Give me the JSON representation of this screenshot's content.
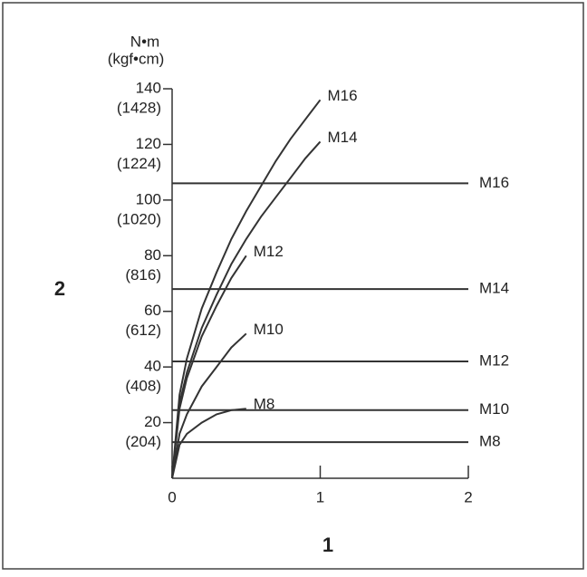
{
  "chart_data": {
    "type": "line",
    "y_unit": "N•m",
    "y2_unit": "(kgf•cm)",
    "x_label": "1",
    "y_label": "2",
    "xlim": [
      0,
      2
    ],
    "xticks": [
      0,
      1,
      2
    ],
    "ylim": [
      0,
      140
    ],
    "yticks": [
      20,
      40,
      60,
      80,
      100,
      120,
      140
    ],
    "y2lim": [
      0,
      1428
    ],
    "y2ticks": [
      {
        "value": 204,
        "label": "(204)"
      },
      {
        "value": 408,
        "label": "(408)"
      },
      {
        "value": 612,
        "label": "(612)"
      },
      {
        "value": 816,
        "label": "(816)"
      },
      {
        "value": 1020,
        "label": "(1020)"
      },
      {
        "value": 1224,
        "label": "(1224)"
      },
      {
        "value": 1428,
        "label": "(1428)"
      }
    ],
    "series": [
      {
        "name": "M16",
        "color": "#333333",
        "x": [
          0,
          0.05,
          0.1,
          0.2,
          0.3,
          0.4,
          0.5,
          0.6,
          0.7,
          0.8,
          0.9,
          1
        ],
        "values": [
          0,
          30,
          43,
          61,
          74,
          86,
          96,
          105,
          114,
          122,
          129,
          136
        ]
      },
      {
        "name": "M14",
        "color": "#333333",
        "x": [
          0,
          0.05,
          0.1,
          0.2,
          0.3,
          0.4,
          0.5,
          0.6,
          0.7,
          0.8,
          0.9,
          1
        ],
        "values": [
          0,
          27,
          38,
          54,
          66,
          77,
          86,
          94,
          101,
          108,
          115,
          121
        ]
      },
      {
        "name": "M12",
        "color": "#333333",
        "x": [
          0,
          0.05,
          0.1,
          0.2,
          0.3,
          0.4,
          0.5
        ],
        "values": [
          0,
          25,
          36,
          51,
          62,
          72,
          80
        ]
      },
      {
        "name": "M10",
        "color": "#333333",
        "x": [
          0,
          0.05,
          0.1,
          0.2,
          0.3,
          0.4,
          0.5
        ],
        "values": [
          0,
          16,
          23,
          33,
          40,
          47,
          52
        ]
      },
      {
        "name": "M8",
        "color": "#333333",
        "x": [
          0,
          0.05,
          0.1,
          0.2,
          0.3,
          0.4,
          0.5
        ],
        "values": [
          0,
          12,
          16,
          20,
          23,
          24.5,
          25
        ]
      },
      {
        "name": "M16",
        "color": "#333333",
        "x": [
          0,
          2
        ],
        "values": [
          106,
          106
        ]
      },
      {
        "name": "M14",
        "color": "#333333",
        "x": [
          0,
          2
        ],
        "values": [
          68,
          68
        ]
      },
      {
        "name": "M12",
        "color": "#333333",
        "x": [
          0,
          2
        ],
        "values": [
          42,
          42
        ]
      },
      {
        "name": "M10",
        "color": "#333333",
        "x": [
          0,
          2
        ],
        "values": [
          24.5,
          24.5
        ]
      },
      {
        "name": "M8",
        "color": "#333333",
        "x": [
          0,
          2
        ],
        "values": [
          13,
          13
        ]
      }
    ]
  }
}
